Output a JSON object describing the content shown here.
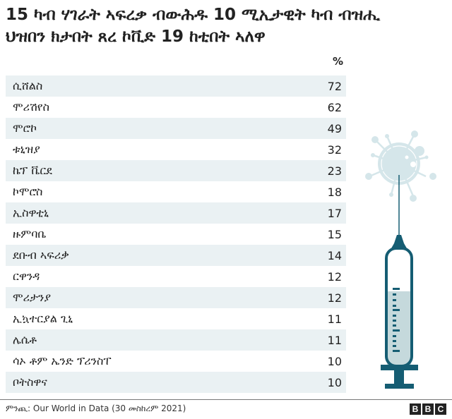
{
  "title": "15 ካብ ሃገራት ኣፍረቃ ብውሕዱ 10 ሚኢታዊት ካብ ብዝሒ ህዝበን ክታበት ጸረ ኮቪድ 19 ከቲበት ኣለዋ",
  "chart_data": {
    "type": "table",
    "column_header": "%",
    "rows": [
      {
        "country": "ሲሸልስ",
        "value": 72
      },
      {
        "country": "ሞሪሽየስ",
        "value": 62
      },
      {
        "country": "ሞሮኮ",
        "value": 49
      },
      {
        "country": "ቱኒዝያ",
        "value": 32
      },
      {
        "country": "ኬፕ ቬርደ",
        "value": 23
      },
      {
        "country": "ኮሞሮስ",
        "value": 18
      },
      {
        "country": "ኢስዋቲኒ",
        "value": 17
      },
      {
        "country": "ዙምባቤ",
        "value": 15
      },
      {
        "country": "ደቡብ ኣፍሪቃ",
        "value": 14
      },
      {
        "country": "ርዋንዳ",
        "value": 12
      },
      {
        "country": "ሞሪታንያ",
        "value": 12
      },
      {
        "country": "ኢኳተርያል ጊኒ",
        "value": 11
      },
      {
        "country": "ሌሴቶ",
        "value": 11
      },
      {
        "country": "ሳኦ ቶም ኤንድ ፕሪንስፐ",
        "value": 10
      },
      {
        "country": "ቦትስዋና",
        "value": 10
      }
    ]
  },
  "footer": {
    "source": "ምንጪ: Our World in Data (30 መስከረም 2021)",
    "logo": [
      "B",
      "B",
      "C"
    ]
  },
  "colors": {
    "row_shade": "#eaf1f3",
    "syringe": "#155d73",
    "liquid": "#c5d9dc",
    "virus": "#d5e6ea"
  }
}
